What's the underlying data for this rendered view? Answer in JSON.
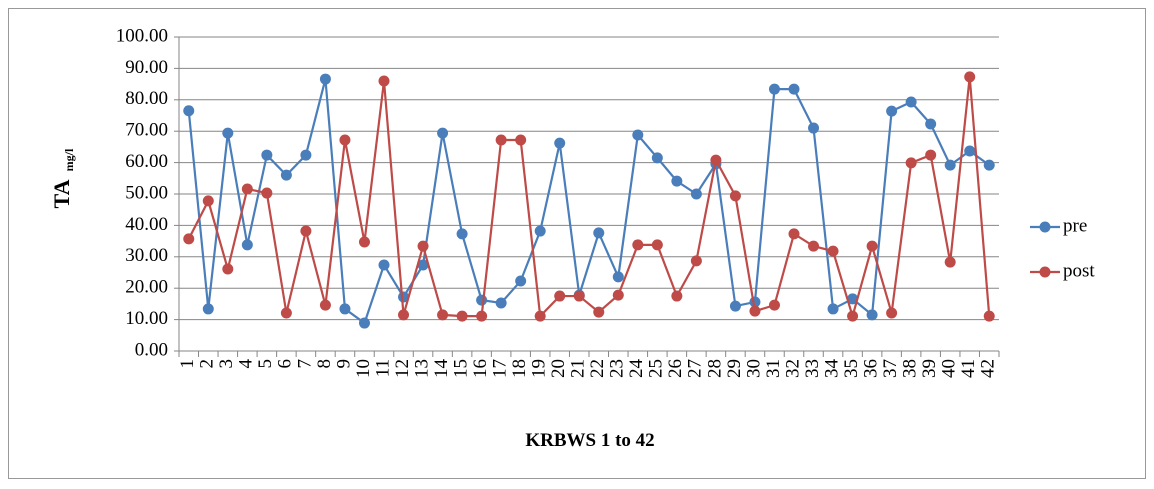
{
  "chart_data": {
    "type": "line",
    "y_label": "TA",
    "y_label_sub": "mg/l",
    "x_label": "KRBWS 1 to 42",
    "categories": [
      "1",
      "2",
      "3",
      "4",
      "5",
      "6",
      "7",
      "8",
      "9",
      "10",
      "11",
      "12",
      "13",
      "14",
      "15",
      "16",
      "17",
      "18",
      "19",
      "20",
      "21",
      "22",
      "23",
      "24",
      "25",
      "26",
      "27",
      "28",
      "29",
      "30",
      "31",
      "32",
      "33",
      "34",
      "35",
      "36",
      "37",
      "38",
      "39",
      "40",
      "41",
      "42"
    ],
    "series": [
      {
        "name": "pre",
        "color": "#4a7ebb",
        "values": [
          76.5,
          13.4,
          69.4,
          33.8,
          62.4,
          56,
          62.4,
          86.6,
          13.4,
          8.9,
          27.4,
          17.2,
          27.4,
          69.4,
          37.3,
          16.2,
          15.3,
          22.3,
          38.2,
          66.2,
          17.8,
          37.6,
          23.6,
          68.8,
          61.5,
          54.1,
          50,
          59.6,
          14.3,
          15.6,
          83.4,
          83.4,
          71,
          13.4,
          16.6,
          11.5,
          76.4,
          79.3,
          72.3,
          59.2,
          63.7,
          59.2
        ]
      },
      {
        "name": "post",
        "color": "#be4b48",
        "values": [
          35.7,
          47.8,
          26.1,
          51.6,
          50.3,
          12.1,
          38.2,
          14.6,
          67.2,
          34.7,
          86,
          11.5,
          33.4,
          11.5,
          11.1,
          11.1,
          67.2,
          67.2,
          11.1,
          17.5,
          17.5,
          12.4,
          17.8,
          33.8,
          33.8,
          17.5,
          28.7,
          60.8,
          49.4,
          12.7,
          14.6,
          37.3,
          33.4,
          31.8,
          11.1,
          33.4,
          12.1,
          59.9,
          62.4,
          28.3,
          87.3,
          11.1
        ]
      }
    ],
    "ylim": [
      0,
      100
    ],
    "yticks": [
      {
        "value": 0,
        "label": "0.00"
      },
      {
        "value": 10,
        "label": "10.00"
      },
      {
        "value": 20,
        "label": "20.00"
      },
      {
        "value": 30,
        "label": "30.00"
      },
      {
        "value": 40,
        "label": "40.00"
      },
      {
        "value": 50,
        "label": "50.00"
      },
      {
        "value": 60,
        "label": "60.00"
      },
      {
        "value": 70,
        "label": "70.00"
      },
      {
        "value": 80,
        "label": "80.00"
      },
      {
        "value": 90,
        "label": "90.00"
      },
      {
        "value": 100,
        "label": "100.00"
      }
    ],
    "grid": true,
    "legend": "right"
  }
}
